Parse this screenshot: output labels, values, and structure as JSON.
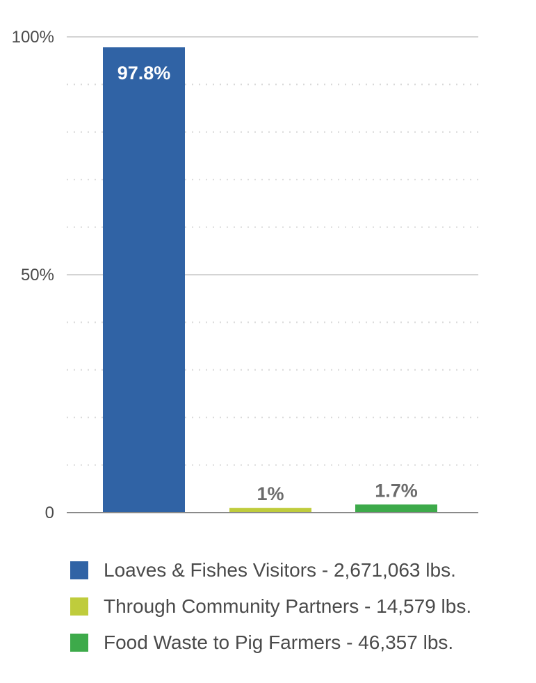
{
  "chart_data": {
    "type": "bar",
    "categories": [
      "Loaves & Fishes Visitors - 2,671,063 lbs.",
      "Through Community Partners - 14,579 lbs.",
      "Food Waste to Pig Farmers - 46,357 lbs."
    ],
    "values": [
      97.8,
      1,
      1.7
    ],
    "value_labels": [
      "97.8%",
      "1%",
      "1.7%"
    ],
    "colors": [
      "#3063a5",
      "#bfcc3c",
      "#3daa4a"
    ],
    "value_label_colors": [
      "#ffffff",
      "#6b6b6b",
      "#6b6b6b"
    ],
    "ylim": [
      0,
      100
    ],
    "y_ticks": [
      {
        "value": 0,
        "label": "0"
      },
      {
        "value": 50,
        "label": "50%"
      },
      {
        "value": 100,
        "label": "100%"
      }
    ],
    "minor_grid_values": [
      10,
      20,
      30,
      40,
      60,
      70,
      80,
      90
    ],
    "grid": true,
    "legend_position": "bottom",
    "title": "",
    "xlabel": "",
    "ylabel": ""
  }
}
